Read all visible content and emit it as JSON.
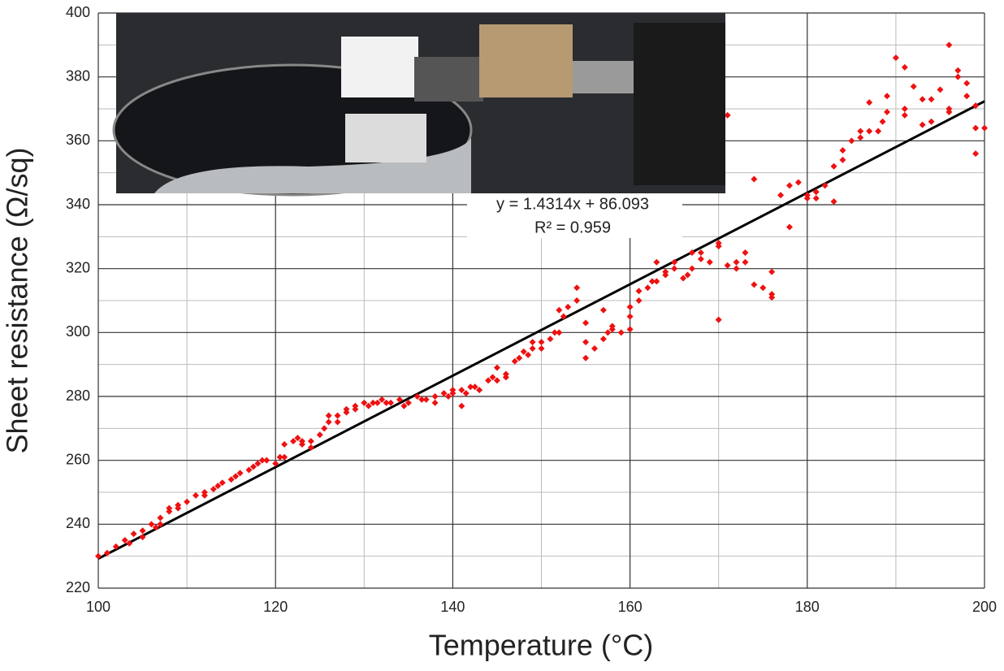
{
  "chart_data": {
    "type": "scatter",
    "x_label": "Temperature (°C)",
    "y_label": "Sheet resistance (Ω/sq)",
    "xlim": [
      100,
      200
    ],
    "ylim": [
      220,
      400
    ],
    "xticks": [
      100,
      120,
      140,
      160,
      180,
      200
    ],
    "yticks": [
      220,
      240,
      260,
      280,
      300,
      320,
      340,
      360,
      380,
      400
    ],
    "grid": true,
    "trendline": {
      "equation": "y = 1.4314x + 86.093",
      "r2": "R² = 0.959",
      "slope": 1.4314,
      "intercept": 86.093,
      "color": "#000000"
    },
    "series": [
      {
        "color": "#ee1111",
        "x": [
          100,
          101,
          102,
          103,
          103.5,
          104,
          105,
          105,
          106,
          106.5,
          107,
          107,
          108,
          108,
          109,
          109,
          110,
          111,
          112,
          112,
          113,
          113.5,
          114,
          115,
          115.5,
          116,
          117,
          117.5,
          118,
          118.5,
          119,
          120,
          120.5,
          121,
          121,
          122,
          122.5,
          123,
          123,
          124,
          124,
          125,
          125.5,
          126,
          126,
          127,
          127,
          128,
          128,
          129,
          129,
          130,
          130.5,
          131,
          131.5,
          132,
          132.5,
          133,
          134,
          134.5,
          135,
          136,
          136.5,
          137,
          138,
          138,
          139,
          139.5,
          140,
          140,
          141,
          141,
          141.5,
          142,
          142.5,
          143,
          144,
          144.5,
          145,
          145,
          146,
          146,
          147,
          147.5,
          148,
          148.5,
          149,
          149,
          150,
          150,
          151,
          151.5,
          152,
          152,
          152.5,
          153,
          154,
          154,
          155,
          155,
          155,
          156,
          157,
          157,
          157.5,
          158,
          158,
          159,
          160,
          160,
          160,
          161,
          161,
          162,
          162.5,
          163,
          163,
          164,
          164,
          165,
          165,
          166,
          166.5,
          167,
          167,
          168,
          168,
          169,
          170,
          170,
          170,
          171,
          172,
          172,
          173,
          173,
          174,
          174,
          175,
          176,
          176,
          176,
          177,
          178,
          178,
          179,
          180,
          180,
          181,
          181,
          182,
          183,
          183,
          184,
          184,
          185,
          186,
          186,
          187,
          187,
          188,
          188.5,
          189,
          189,
          190,
          191,
          191,
          191,
          192,
          193,
          193,
          194,
          194,
          195,
          196,
          196,
          196,
          197,
          197,
          198,
          198,
          199,
          199,
          199,
          200,
          171
        ],
        "values": [
          230,
          231,
          233,
          235,
          234,
          237,
          238,
          236,
          240,
          239,
          242,
          240,
          244,
          245,
          246,
          245,
          247,
          249,
          249,
          250,
          251,
          252,
          253,
          254,
          255,
          256,
          257,
          258,
          259,
          260,
          260,
          259,
          261,
          265,
          261,
          266,
          267,
          266,
          265,
          266,
          264,
          268,
          270,
          274,
          272,
          274,
          272,
          276,
          275,
          277,
          276,
          278,
          277,
          278,
          278,
          279,
          278,
          278,
          279,
          277,
          278,
          280,
          279,
          279,
          280,
          278,
          281,
          280,
          281,
          282,
          282,
          277,
          281,
          283,
          283,
          282,
          285,
          286,
          289,
          285,
          287,
          286,
          291,
          292,
          294,
          293,
          295,
          297,
          297,
          295,
          298,
          300,
          300,
          307,
          305,
          308,
          310,
          314,
          303,
          297,
          292,
          295,
          298,
          307,
          300,
          301,
          302,
          300,
          301,
          308,
          305,
          310,
          313,
          314,
          316,
          316,
          322,
          319,
          318,
          320,
          322,
          317,
          318,
          320,
          325,
          323,
          325,
          322,
          327,
          328,
          304,
          321,
          320,
          322,
          322,
          325,
          315,
          348,
          314,
          311,
          312,
          319,
          343,
          346,
          333,
          347,
          342,
          343,
          344,
          342,
          346,
          341,
          352,
          357,
          354,
          360,
          361,
          363,
          363,
          372,
          363,
          366,
          369,
          374,
          386,
          370,
          368,
          383,
          377,
          365,
          373,
          373,
          366,
          376,
          370,
          369,
          390,
          382,
          380,
          378,
          374,
          356,
          364,
          371,
          364,
          368
        ]
      }
    ]
  }
}
